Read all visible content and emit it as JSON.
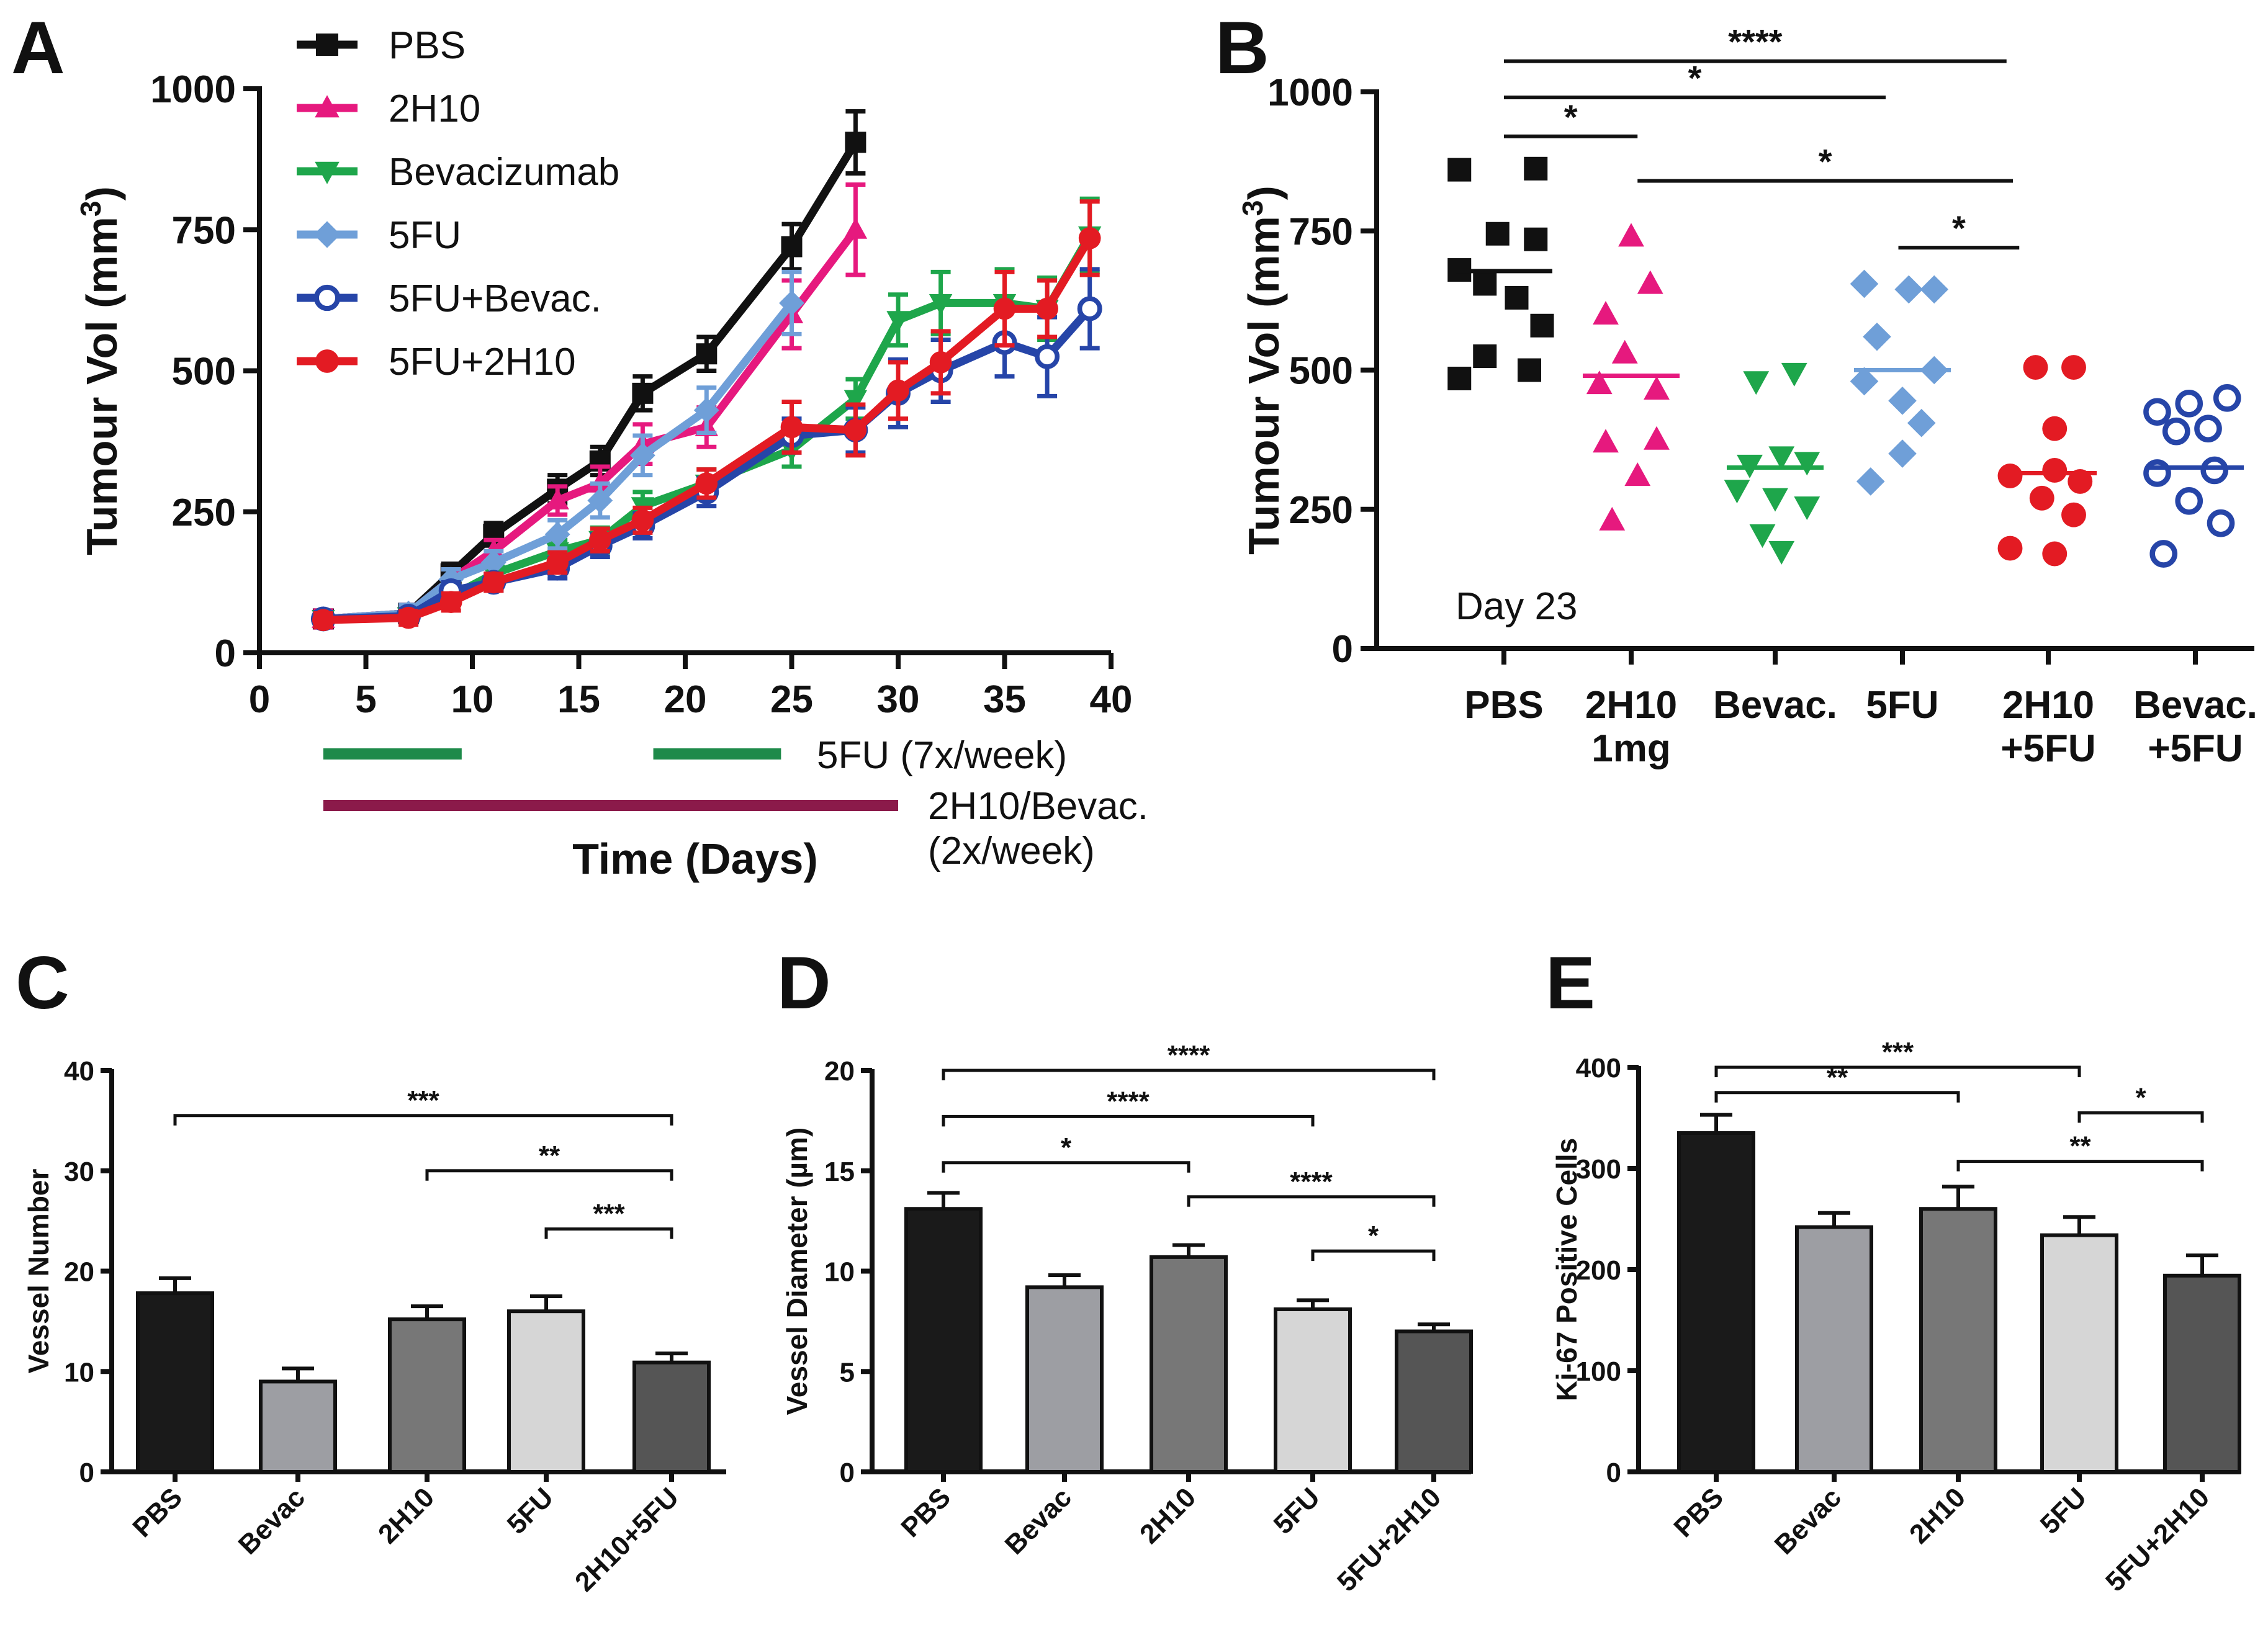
{
  "chart_data": [
    {
      "panel": "A",
      "type": "line",
      "xlabel": "Time (Days)",
      "ylabel": "Tumour Vol (mm3)",
      "xlim": [
        0,
        40
      ],
      "ylim": [
        0,
        1000
      ],
      "xticks": [
        0,
        5,
        10,
        15,
        20,
        25,
        30,
        35,
        40
      ],
      "yticks": [
        0,
        250,
        500,
        750,
        1000
      ],
      "legend_position": "top-left",
      "series": [
        {
          "name": "PBS",
          "color": "#111111",
          "marker": "square",
          "x": [
            3,
            7,
            9,
            11,
            14,
            16,
            18,
            21,
            25,
            28
          ],
          "y": [
            60,
            70,
            140,
            210,
            290,
            340,
            460,
            530,
            720,
            905
          ],
          "err": [
            15,
            15,
            18,
            20,
            25,
            25,
            30,
            30,
            40,
            55
          ]
        },
        {
          "name": "2H10",
          "color": "#e6197e",
          "marker": "triangle-up",
          "x": [
            3,
            7,
            9,
            11,
            14,
            16,
            18,
            21,
            25,
            28
          ],
          "y": [
            60,
            70,
            130,
            180,
            270,
            300,
            370,
            400,
            600,
            750
          ],
          "err": [
            15,
            15,
            18,
            20,
            25,
            30,
            35,
            35,
            60,
            80
          ]
        },
        {
          "name": "Bevacizumab",
          "color": "#1ea64b",
          "marker": "triangle-down",
          "x": [
            3,
            7,
            9,
            11,
            14,
            16,
            18,
            21,
            25,
            28,
            30,
            32,
            35,
            37,
            39
          ],
          "y": [
            60,
            65,
            100,
            140,
            180,
            200,
            260,
            300,
            360,
            450,
            590,
            620,
            620,
            610,
            740
          ],
          "err": [
            12,
            12,
            15,
            15,
            20,
            22,
            25,
            25,
            30,
            35,
            45,
            55,
            60,
            55,
            65
          ]
        },
        {
          "name": "5FU",
          "color": "#6f9fd8",
          "marker": "diamond",
          "x": [
            3,
            7,
            9,
            11,
            14,
            16,
            18,
            21,
            25
          ],
          "y": [
            60,
            70,
            130,
            160,
            210,
            270,
            350,
            430,
            620
          ],
          "err": [
            12,
            15,
            18,
            20,
            25,
            30,
            35,
            40,
            55
          ]
        },
        {
          "name": "5FU+Bevac.",
          "color": "#2645a8",
          "marker": "circle-open",
          "x": [
            3,
            7,
            9,
            11,
            14,
            16,
            18,
            21,
            25,
            28,
            30,
            32,
            35,
            37,
            39
          ],
          "y": [
            60,
            65,
            110,
            125,
            150,
            190,
            225,
            285,
            385,
            395,
            460,
            500,
            550,
            525,
            610
          ],
          "err": [
            12,
            12,
            15,
            15,
            18,
            20,
            22,
            25,
            30,
            40,
            60,
            55,
            60,
            70,
            70
          ]
        },
        {
          "name": "5FU+2H10",
          "color": "#e31b23",
          "marker": "circle",
          "x": [
            3,
            7,
            9,
            11,
            14,
            16,
            18,
            21,
            25,
            28,
            30,
            32,
            35,
            37,
            39
          ],
          "y": [
            58,
            62,
            90,
            125,
            160,
            200,
            235,
            300,
            400,
            395,
            465,
            515,
            610,
            610,
            735
          ],
          "err": [
            12,
            12,
            15,
            15,
            18,
            20,
            22,
            25,
            45,
            45,
            50,
            55,
            65,
            50,
            65
          ]
        }
      ],
      "annotations": {
        "fu_label": "5FU (7x/week)",
        "fu_color": "#1e8a4a",
        "fu_bars": [
          [
            3,
            9.5
          ],
          [
            18.5,
            24.5
          ]
        ],
        "ab_label_1": "2H10/Bevac.",
        "ab_label_2": "(2x/week)",
        "ab_color": "#8b1a4a",
        "ab_bar": [
          3,
          30
        ]
      }
    },
    {
      "panel": "B",
      "type": "scatter",
      "ylabel": "Tumour Vol (mm3)",
      "ylim": [
        0,
        1000
      ],
      "yticks": [
        0,
        250,
        500,
        750,
        1000
      ],
      "note": "Day 23",
      "categories": [
        {
          "line1": "PBS",
          "line2": "",
          "color": "#111111",
          "marker": "square",
          "mean": 678,
          "points": [
            [
              -0.35,
              860
            ],
            [
              0.25,
              862
            ],
            [
              -0.05,
              745
            ],
            [
              0.25,
              735
            ],
            [
              -0.35,
              680
            ],
            [
              -0.15,
              655
            ],
            [
              0.1,
              630
            ],
            [
              0.3,
              580
            ],
            [
              -0.15,
              525
            ],
            [
              -0.35,
              485
            ],
            [
              0.2,
              500
            ]
          ]
        },
        {
          "line1": "2H10",
          "line2": "1mg",
          "color": "#e6197e",
          "marker": "triangle-up",
          "mean": 490,
          "points": [
            [
              0,
              740
            ],
            [
              0.15,
              655
            ],
            [
              -0.2,
              600
            ],
            [
              -0.05,
              530
            ],
            [
              -0.25,
              475
            ],
            [
              0.2,
              465
            ],
            [
              -0.2,
              370
            ],
            [
              0.2,
              375
            ],
            [
              0.05,
              310
            ],
            [
              -0.15,
              230
            ]
          ]
        },
        {
          "line1": "Bevac.",
          "line2": "",
          "color": "#1ea64b",
          "marker": "triangle-down",
          "mean": 325,
          "points": [
            [
              -0.15,
              480
            ],
            [
              0.15,
              495
            ],
            [
              -0.2,
              330
            ],
            [
              0.05,
              345
            ],
            [
              0.25,
              335
            ],
            [
              -0.3,
              285
            ],
            [
              0,
              270
            ],
            [
              0.25,
              255
            ],
            [
              -0.1,
              205
            ],
            [
              0.05,
              175
            ]
          ]
        },
        {
          "line1": "5FU",
          "line2": "",
          "color": "#6f9fd8",
          "marker": "diamond",
          "mean": 500,
          "points": [
            [
              -0.3,
              655
            ],
            [
              0.05,
              645
            ],
            [
              0.25,
              645
            ],
            [
              -0.2,
              560
            ],
            [
              0.25,
              500
            ],
            [
              -0.3,
              480
            ],
            [
              0,
              445
            ],
            [
              0.15,
              405
            ],
            [
              0,
              350
            ],
            [
              -0.25,
              300
            ]
          ]
        },
        {
          "line1": "2H10",
          "line2": "+5FU",
          "color": "#e31b23",
          "marker": "circle",
          "mean": 315,
          "points": [
            [
              -0.1,
              505
            ],
            [
              0.2,
              505
            ],
            [
              0.05,
              395
            ],
            [
              -0.3,
              310
            ],
            [
              0.05,
              320
            ],
            [
              0.25,
              300
            ],
            [
              -0.05,
              270
            ],
            [
              0.2,
              240
            ],
            [
              -0.3,
              180
            ],
            [
              0.05,
              170
            ]
          ]
        },
        {
          "line1": "Bevac.",
          "line2": "+5FU",
          "color": "#2645a8",
          "marker": "circle-open",
          "mean": 325,
          "points": [
            [
              -0.3,
              425
            ],
            [
              -0.05,
              440
            ],
            [
              0.25,
              450
            ],
            [
              -0.15,
              390
            ],
            [
              0.1,
              395
            ],
            [
              -0.3,
              315
            ],
            [
              0.15,
              320
            ],
            [
              -0.05,
              265
            ],
            [
              0.2,
              225
            ],
            [
              -0.25,
              170
            ]
          ]
        }
      ],
      "significance": [
        {
          "from": 0,
          "to": 3.95,
          "label": "****",
          "y": 1055
        },
        {
          "from": 0,
          "to": 3.0,
          "label": "*",
          "y": 990
        },
        {
          "from": 0,
          "to": 1.05,
          "label": "*",
          "y": 920
        },
        {
          "from": 1.05,
          "to": 4.0,
          "label": "*",
          "y": 840
        },
        {
          "from": 3.1,
          "to": 4.05,
          "label": "*",
          "y": 720
        }
      ]
    },
    {
      "panel": "C",
      "type": "bar",
      "ylabel": "Vessel Number",
      "ylim": [
        0,
        40
      ],
      "yticks": [
        0,
        10,
        20,
        30,
        40
      ],
      "categories": [
        "PBS",
        "Bevac",
        "2H10",
        "5FU",
        "2H10+5FU"
      ],
      "values": [
        17.8,
        9.0,
        15.2,
        16.0,
        10.9
      ],
      "err": [
        1.5,
        1.3,
        1.3,
        1.5,
        0.9
      ],
      "colors": [
        "#1a1a1a",
        "#9d9ea3",
        "#777777",
        "#d6d6d6",
        "#555555"
      ],
      "significance": [
        {
          "from": 0,
          "to": 4,
          "label": "***",
          "y": 35.5
        },
        {
          "from": 2,
          "to": 4,
          "label": "**",
          "y": 30.0
        },
        {
          "from": 3,
          "to": 4,
          "label": "***",
          "y": 24.2
        }
      ]
    },
    {
      "panel": "D",
      "type": "bar",
      "ylabel": "Vessel Diameter (µm)",
      "ylim": [
        0,
        20
      ],
      "yticks": [
        0,
        5,
        10,
        15,
        20
      ],
      "categories": [
        "PBS",
        "Bevac",
        "2H10",
        "5FU",
        "5FU+2H10"
      ],
      "values": [
        13.1,
        9.2,
        10.7,
        8.1,
        7.0
      ],
      "err": [
        0.8,
        0.6,
        0.6,
        0.45,
        0.35
      ],
      "colors": [
        "#1a1a1a",
        "#9d9ea3",
        "#777777",
        "#d6d6d6",
        "#555555"
      ],
      "significance": [
        {
          "from": 0,
          "to": 4,
          "label": "****",
          "y": 20.0
        },
        {
          "from": 0,
          "to": 3,
          "label": "****",
          "y": 17.7
        },
        {
          "from": 0,
          "to": 2,
          "label": "*",
          "y": 15.4
        },
        {
          "from": 2,
          "to": 4,
          "label": "****",
          "y": 13.7
        },
        {
          "from": 3,
          "to": 4,
          "label": "*",
          "y": 11.0
        }
      ]
    },
    {
      "panel": "E",
      "type": "bar",
      "ylabel": "Ki-67 Positive Cells",
      "ylim": [
        0,
        400
      ],
      "yticks": [
        0,
        100,
        200,
        300,
        400
      ],
      "categories": [
        "PBS",
        "Bevac",
        "2H10",
        "5FU",
        "5FU+2H10"
      ],
      "values": [
        335,
        242,
        260,
        234,
        194
      ],
      "err": [
        18,
        14,
        22,
        18,
        20
      ],
      "colors": [
        "#1a1a1a",
        "#9d9ea3",
        "#777777",
        "#d6d6d6",
        "#555555"
      ],
      "significance": [
        {
          "from": 0,
          "to": 3,
          "label": "***",
          "y": 400
        },
        {
          "from": 0,
          "to": 2,
          "label": "**",
          "y": 375
        },
        {
          "from": 3,
          "to": 4,
          "label": "*",
          "y": 355
        },
        {
          "from": 2,
          "to": 4,
          "label": "**",
          "y": 307
        }
      ]
    }
  ]
}
